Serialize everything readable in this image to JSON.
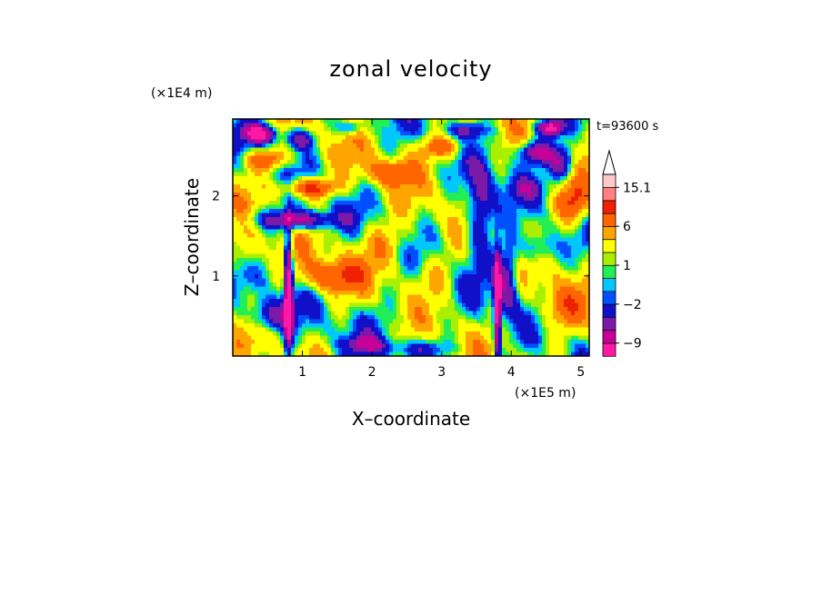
{
  "chart_data": {
    "type": "heatmap",
    "title": "zonal velocity",
    "xlabel": "X–coordinate",
    "ylabel": "Z–coordinate",
    "x_unit": "(×1E5 m)",
    "y_unit": "(×1E4 m)",
    "time_label": "t=93600 s",
    "xlim": [
      0,
      5.12
    ],
    "ylim": [
      0,
      2.96
    ],
    "x_ticks": [
      1,
      2,
      3,
      4,
      5
    ],
    "y_ticks": [
      1,
      2
    ],
    "x_tick_labels": [
      "1",
      "2",
      "3",
      "4",
      "5"
    ],
    "y_tick_labels": [
      "1",
      "2"
    ],
    "colorbar": {
      "levels": [
        -12,
        -9,
        -6,
        -4,
        -2,
        -1,
        0,
        1,
        2,
        4,
        6,
        9,
        12,
        15.1
      ],
      "labels": [
        {
          "value": 15.1,
          "text": "15.1"
        },
        {
          "value": 6,
          "text": "6"
        },
        {
          "value": 1,
          "text": "1"
        },
        {
          "value": -2,
          "text": "−2"
        },
        {
          "value": -9,
          "text": "−9"
        }
      ],
      "colors": [
        "#ff1aa6",
        "#c8009a",
        "#7a1aa6",
        "#1010c8",
        "#0050ff",
        "#00c8ff",
        "#22ee55",
        "#aaee00",
        "#ffff00",
        "#ffa500",
        "#ff6600",
        "#ee2200",
        "#ff8080",
        "#ffc8c8"
      ],
      "extend_max": true
    }
  }
}
